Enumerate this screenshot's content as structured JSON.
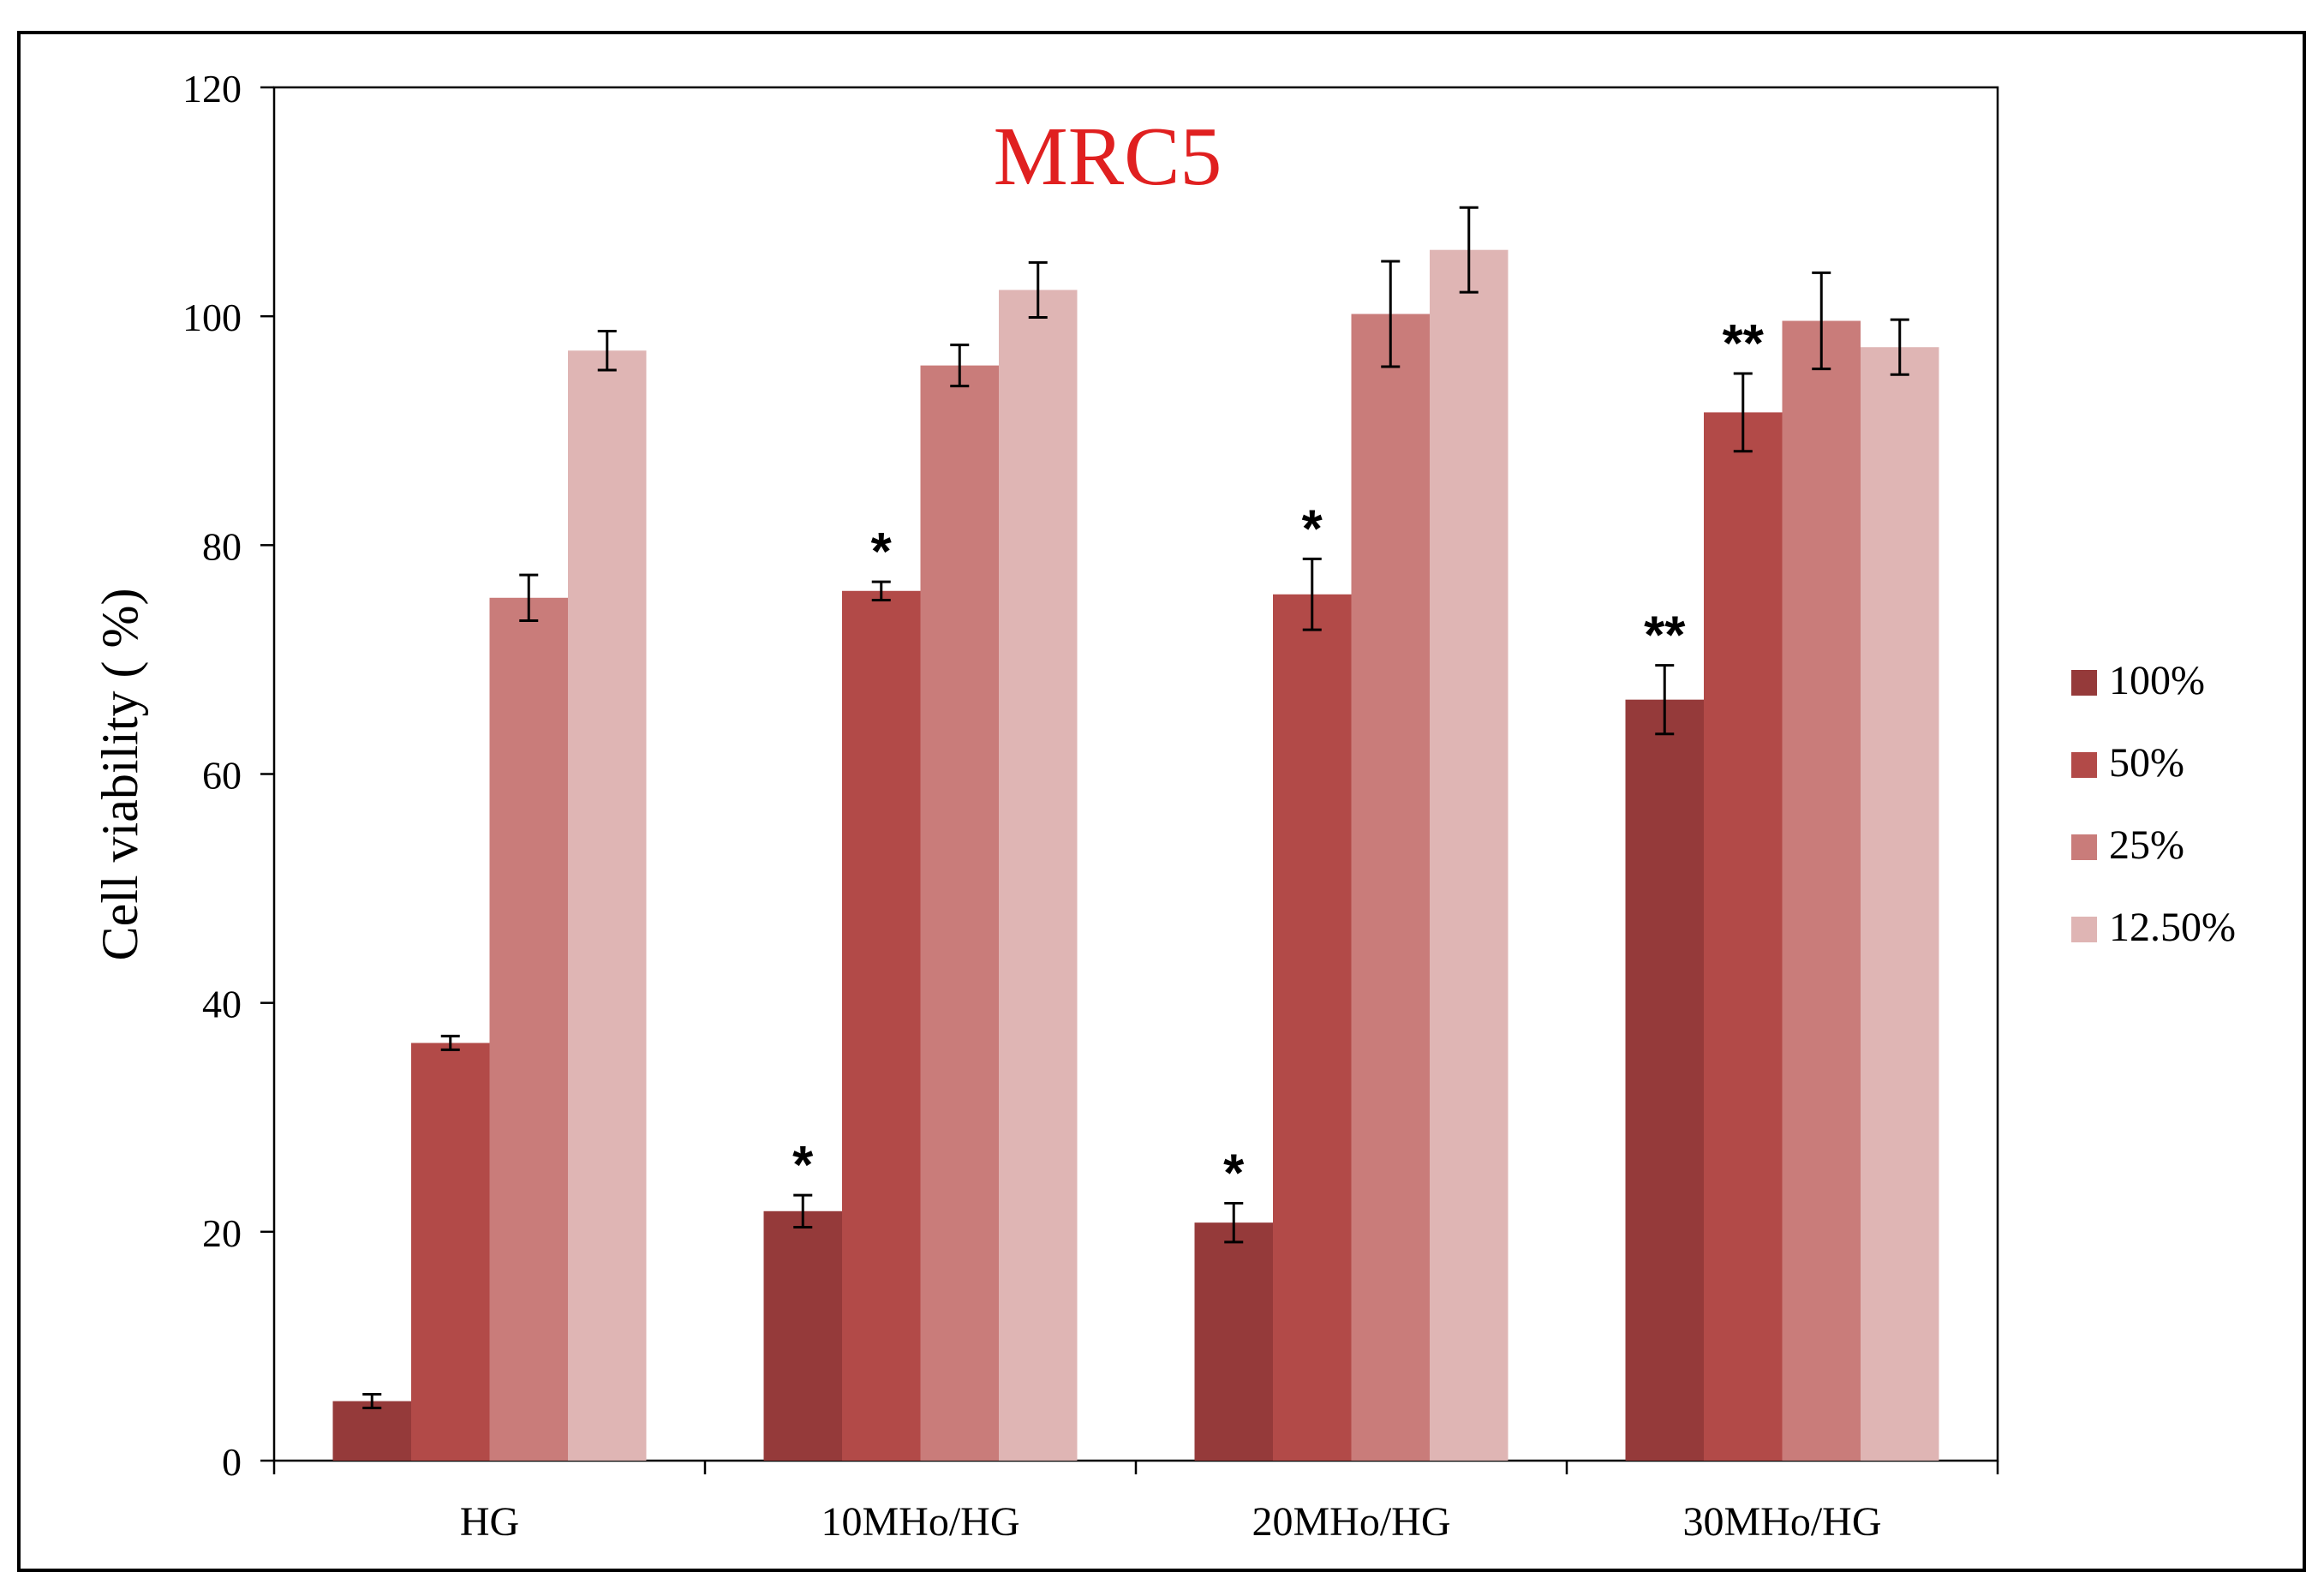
{
  "chart_data": {
    "type": "bar",
    "title": "MRC5",
    "title_color": "#e02020",
    "xlabel": "",
    "ylabel": "Cell viability ( %)",
    "ylim": [
      0,
      120
    ],
    "yticks": [
      0,
      20,
      40,
      60,
      80,
      100,
      120
    ],
    "grid": false,
    "legend_position": "right",
    "categories": [
      "HG",
      "10MHo/HG",
      "20MHo/HG",
      "30MHo/HG"
    ],
    "series": [
      {
        "name": "100%",
        "color": "#953a3a",
        "values": [
          5.2,
          21.8,
          20.8,
          66.5
        ],
        "errors": [
          0.6,
          1.4,
          1.7,
          3.0
        ],
        "annotations": [
          "",
          "*",
          "*",
          "**"
        ]
      },
      {
        "name": "50%",
        "color": "#b24a48",
        "values": [
          36.5,
          76.0,
          75.7,
          91.6
        ],
        "errors": [
          0.6,
          0.8,
          3.1,
          3.4
        ],
        "annotations": [
          "",
          "*",
          "*",
          "**"
        ]
      },
      {
        "name": "25%",
        "color": "#c97c7a",
        "values": [
          75.4,
          95.7,
          100.2,
          99.6
        ],
        "errors": [
          2.0,
          1.8,
          4.6,
          4.2
        ],
        "annotations": [
          "",
          "",
          "",
          ""
        ]
      },
      {
        "name": "12.50%",
        "color": "#dfb5b4",
        "values": [
          97.0,
          102.3,
          105.8,
          97.3
        ],
        "errors": [
          1.7,
          2.4,
          3.7,
          2.4
        ],
        "annotations": [
          "",
          "",
          "",
          ""
        ]
      }
    ]
  }
}
